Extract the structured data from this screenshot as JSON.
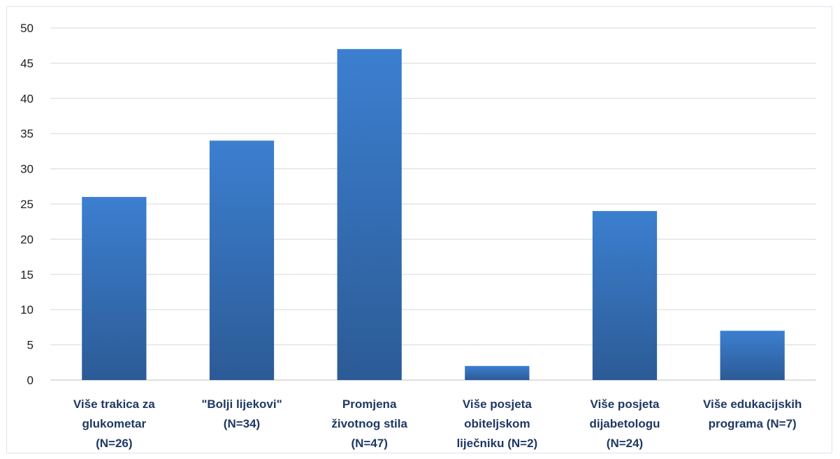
{
  "chart_data": {
    "type": "bar",
    "categories": [
      [
        "Više trakica za",
        "glukometar",
        "(N=26)"
      ],
      [
        "\"Bolji lijekovi\"",
        "(N=34)"
      ],
      [
        "Promjena",
        "životnog stila",
        "(N=47)"
      ],
      [
        "Više posjeta",
        "obiteljskom",
        "liječniku (N=2)"
      ],
      [
        "Više posjeta",
        "dijabetologu",
        "(N=24)"
      ],
      [
        "Više edukacijskih",
        "programa (N=7)"
      ]
    ],
    "values": [
      26,
      34,
      47,
      2,
      24,
      7
    ],
    "ylim": [
      0,
      50
    ],
    "yticks": [
      0,
      5,
      10,
      15,
      20,
      25,
      30,
      35,
      40,
      45,
      50
    ],
    "grid": true,
    "title": "",
    "xlabel": "",
    "ylabel": "",
    "colors": {
      "bar_top": "#3c7fd0",
      "bar_bottom": "#2c5b96",
      "grid": "#d9d9d9",
      "label": "#1f3864"
    }
  }
}
